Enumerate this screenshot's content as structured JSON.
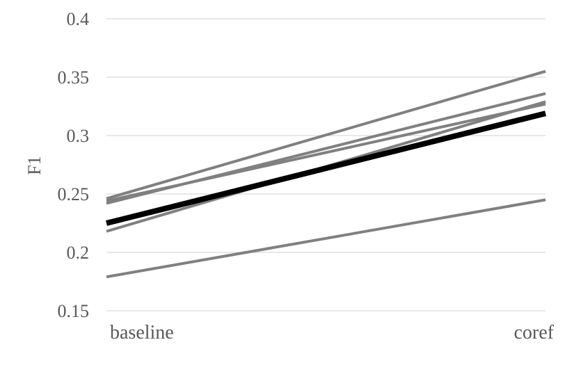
{
  "chart_data": {
    "type": "line",
    "title": "",
    "xlabel": "",
    "ylabel": "F1",
    "categories": [
      "baseline",
      "coref"
    ],
    "ylim": [
      0.15,
      0.4
    ],
    "yticks": [
      "0.15",
      "0.2",
      "0.25",
      "0.3",
      "0.35",
      "0.4"
    ],
    "grid": true,
    "legend": "none",
    "series": [
      {
        "values": [
          0.246,
          0.355
        ],
        "color": "#808080",
        "emphasis": false
      },
      {
        "values": [
          0.242,
          0.336
        ],
        "color": "#808080",
        "emphasis": false
      },
      {
        "values": [
          0.244,
          0.327
        ],
        "color": "#808080",
        "emphasis": false
      },
      {
        "values": [
          0.218,
          0.329
        ],
        "color": "#808080",
        "emphasis": false
      },
      {
        "values": [
          0.179,
          0.245
        ],
        "color": "#808080",
        "emphasis": false
      },
      {
        "values": [
          0.225,
          0.319
        ],
        "color": "#000000",
        "emphasis": true
      }
    ]
  }
}
